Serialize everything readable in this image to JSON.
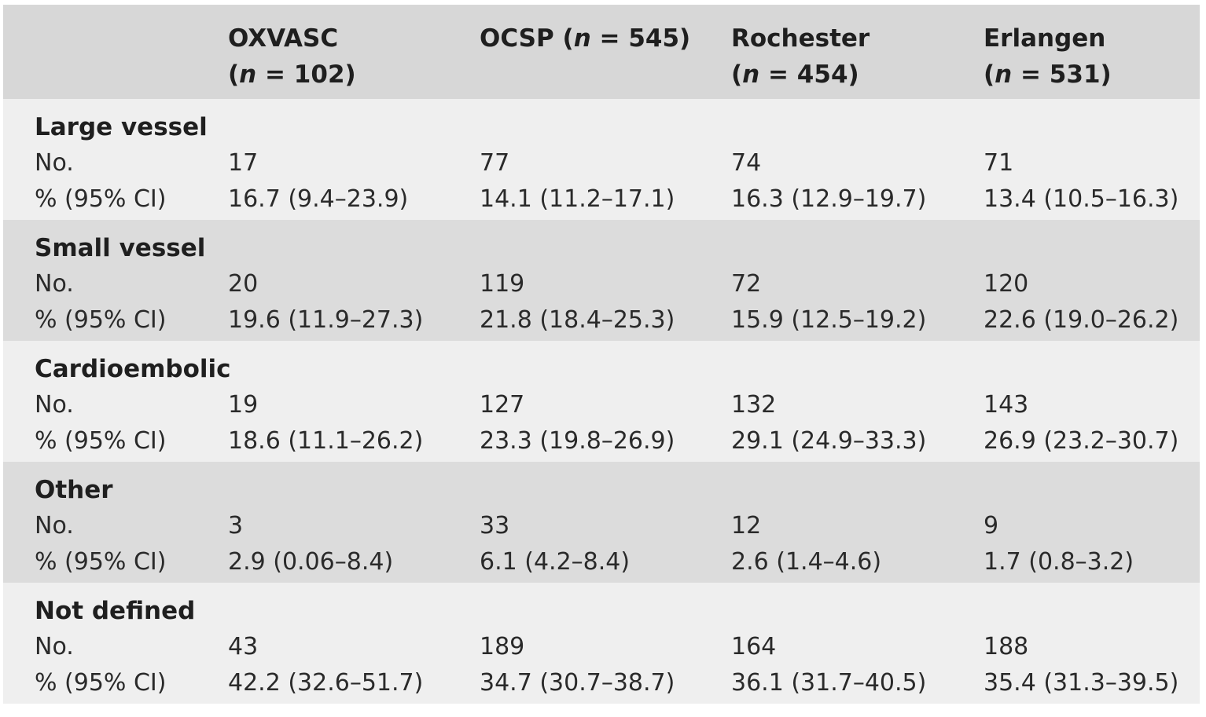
{
  "header": {
    "columns": [
      {
        "name": "OXVASC",
        "n_label": "(",
        "n_italic": "n",
        "n_rest": " = 102)"
      },
      {
        "name": "OCSP (",
        "n_label": "",
        "n_italic": "n",
        "n_rest": " = 545)"
      },
      {
        "name": "Rochester",
        "n_label": "(",
        "n_italic": "n",
        "n_rest": " = 454)"
      },
      {
        "name": "Erlangen",
        "n_label": "(",
        "n_italic": "n",
        "n_rest": " = 531)"
      }
    ]
  },
  "row_labels": {
    "count": "No.",
    "percent": "% (95% CI)"
  },
  "groups": [
    {
      "title": "Large vessel",
      "counts": [
        "17",
        "77",
        "74",
        "71"
      ],
      "percents": [
        "16.7 (9.4–23.9)",
        "14.1 (11.2–17.1)",
        "16.3 (12.9–19.7)",
        "13.4 (10.5–16.3)"
      ]
    },
    {
      "title": "Small vessel",
      "counts": [
        "20",
        "119",
        "72",
        "120"
      ],
      "percents": [
        "19.6 (11.9–27.3)",
        "21.8 (18.4–25.3)",
        "15.9 (12.5–19.2)",
        "22.6 (19.0–26.2)"
      ]
    },
    {
      "title": "Cardioembolic",
      "counts": [
        "19",
        "127",
        "132",
        "143"
      ],
      "percents": [
        "18.6 (11.1–26.2)",
        "23.3 (19.8–26.9)",
        "29.1 (24.9–33.3)",
        "26.9 (23.2–30.7)"
      ]
    },
    {
      "title": "Other",
      "counts": [
        "3",
        "33",
        "12",
        "9"
      ],
      "percents": [
        "2.9 (0.06–8.4)",
        "6.1 (4.2–8.4)",
        "2.6 (1.4–4.6)",
        "1.7 (0.8–3.2)"
      ]
    },
    {
      "title": "Not defined",
      "counts": [
        "43",
        "189",
        "164",
        "188"
      ],
      "percents": [
        "42.2 (32.6–51.7)",
        "34.7 (30.7–38.7)",
        "36.1 (31.7–40.5)",
        "35.4 (31.3–39.5)"
      ]
    }
  ]
}
